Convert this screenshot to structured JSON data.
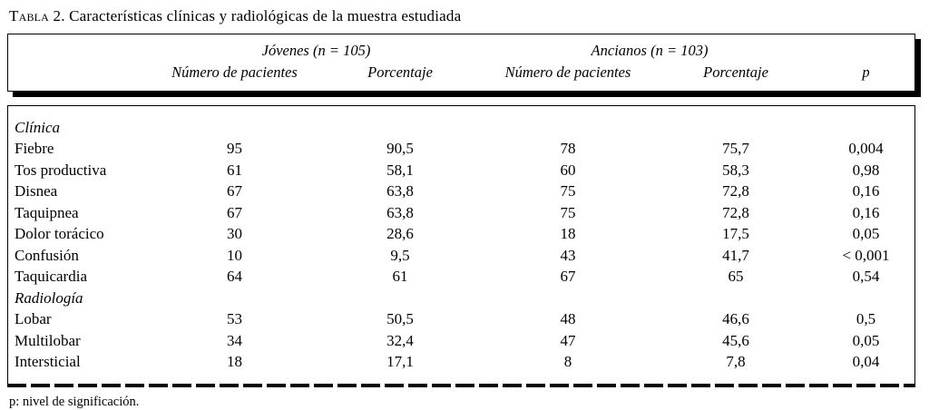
{
  "title": {
    "label": "Tabla 2.",
    "text": "Características clínicas y radiológicas de la muestra estudiada"
  },
  "table": {
    "groups": [
      {
        "label": "Jóvenes (n = 105)"
      },
      {
        "label": "Ancianos (n = 103)"
      }
    ],
    "columns": [
      "Número de pacientes",
      "Porcentaje",
      "Número de pacientes",
      "Porcentaje",
      "p"
    ],
    "rows": [
      {
        "label": "Clínica",
        "type": "section",
        "values": [
          "",
          "",
          "",
          "",
          ""
        ]
      },
      {
        "label": "Fiebre",
        "type": "data",
        "values": [
          "95",
          "90,5",
          "78",
          "75,7",
          "0,004"
        ]
      },
      {
        "label": "Tos productiva",
        "type": "data",
        "values": [
          "61",
          "58,1",
          "60",
          "58,3",
          "0,98"
        ]
      },
      {
        "label": "Disnea",
        "type": "data",
        "values": [
          "67",
          "63,8",
          "75",
          "72,8",
          "0,16"
        ]
      },
      {
        "label": "Taquipnea",
        "type": "data",
        "values": [
          "67",
          "63,8",
          "75",
          "72,8",
          "0,16"
        ]
      },
      {
        "label": "Dolor torácico",
        "type": "data",
        "values": [
          "30",
          "28,6",
          "18",
          "17,5",
          "0,05"
        ]
      },
      {
        "label": "Confusión",
        "type": "data",
        "values": [
          "10",
          "9,5",
          "43",
          "41,7",
          "< 0,001"
        ]
      },
      {
        "label": "Taquicardia",
        "type": "data",
        "values": [
          "64",
          "61",
          "67",
          "65",
          "0,54"
        ]
      },
      {
        "label": "Radiología",
        "type": "section",
        "values": [
          "",
          "",
          "",
          "",
          ""
        ]
      },
      {
        "label": "Lobar",
        "type": "data",
        "values": [
          "53",
          "50,5",
          "48",
          "46,6",
          "0,5"
        ]
      },
      {
        "label": "Multilobar",
        "type": "data",
        "values": [
          "34",
          "32,4",
          "47",
          "45,6",
          "0,05"
        ]
      },
      {
        "label": "Intersticial",
        "type": "data",
        "values": [
          "18",
          "17,1",
          "8",
          "7,8",
          "0,04"
        ]
      }
    ],
    "footnote": "p: nivel de significación."
  }
}
